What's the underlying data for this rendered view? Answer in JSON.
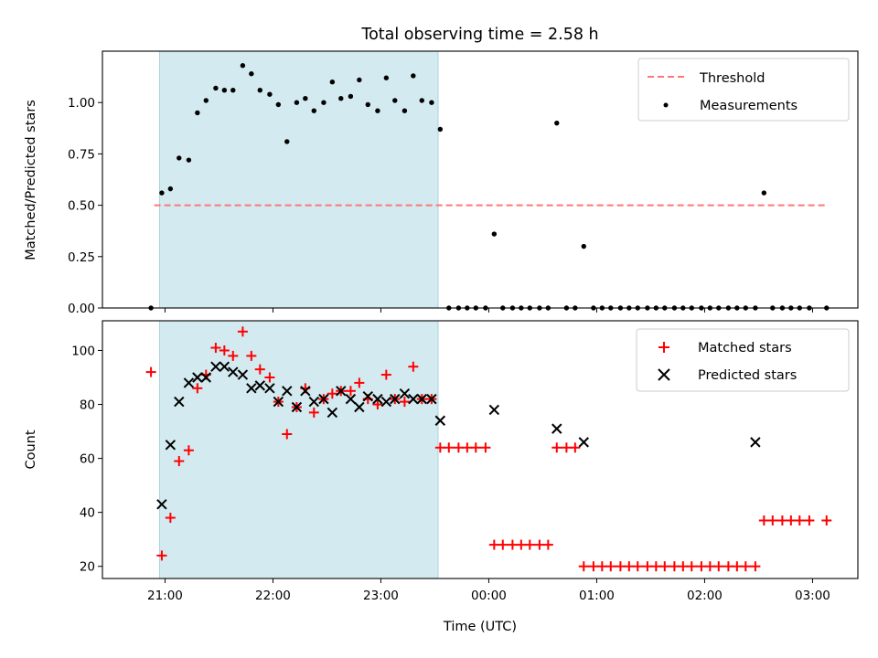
{
  "chart_data": {
    "title": "Total observing time = 2.58 h",
    "xlabel": "Time (UTC)",
    "x_tick_labels": [
      "21:00",
      "22:00",
      "23:00",
      "00:00",
      "01:00",
      "02:00",
      "03:00"
    ],
    "x_tick_hours": [
      21,
      22,
      23,
      24,
      25,
      26,
      27
    ],
    "x_range_hours": [
      20.42,
      27.42
    ],
    "observing_window_hours": [
      20.95,
      23.53
    ],
    "shade_color": "#d3eaf0",
    "panels": [
      {
        "type": "scatter",
        "ylabel": "Matched/Predicted stars",
        "ylim": [
          0,
          1.25
        ],
        "y_ticks": [
          0,
          0.25,
          0.5,
          0.75,
          1.0
        ],
        "y_tick_labels": [
          "0.00",
          "0.25",
          "0.50",
          "0.75",
          "1.00"
        ],
        "legend_position": "top-right",
        "threshold": {
          "name": "Threshold",
          "value": 0.5,
          "x_range": [
            20.9,
            27.13
          ],
          "color": "#ff7575"
        },
        "series": [
          {
            "name": "Measurements",
            "color": "#000000",
            "x": [
              20.87,
              20.97,
              21.05,
              21.13,
              21.22,
              21.3,
              21.38,
              21.47,
              21.55,
              21.63,
              21.72,
              21.8,
              21.88,
              21.97,
              22.05,
              22.13,
              22.22,
              22.3,
              22.38,
              22.47,
              22.55,
              22.63,
              22.72,
              22.8,
              22.88,
              22.97,
              23.05,
              23.13,
              23.22,
              23.3,
              23.38,
              23.47,
              23.55,
              23.63,
              23.72,
              23.8,
              23.88,
              23.97,
              24.05,
              24.13,
              24.22,
              24.3,
              24.38,
              24.47,
              24.55,
              24.63,
              24.72,
              24.8,
              24.88,
              24.97,
              25.05,
              25.13,
              25.22,
              25.3,
              25.38,
              25.47,
              25.55,
              25.63,
              25.72,
              25.8,
              25.88,
              25.97,
              26.05,
              26.13,
              26.22,
              26.3,
              26.38,
              26.47,
              26.55,
              26.63,
              26.72,
              26.8,
              26.88,
              26.97,
              27.13
            ],
            "y": [
              0.0,
              0.56,
              0.58,
              0.73,
              0.72,
              0.95,
              1.01,
              1.07,
              1.06,
              1.06,
              1.18,
              1.14,
              1.06,
              1.04,
              0.99,
              0.81,
              1.0,
              1.02,
              0.96,
              1.0,
              1.1,
              1.02,
              1.03,
              1.11,
              0.99,
              0.96,
              1.12,
              1.01,
              0.96,
              1.13,
              1.01,
              1.0,
              0.87,
              0.0,
              0.0,
              0.0,
              0.0,
              0.0,
              0.36,
              0.0,
              0.0,
              0.0,
              0.0,
              0.0,
              0.0,
              0.9,
              0.0,
              0.0,
              0.3,
              0.0,
              0.0,
              0.0,
              0.0,
              0.0,
              0.0,
              0.0,
              0.0,
              0.0,
              0.0,
              0.0,
              0.0,
              0.0,
              0.0,
              0.0,
              0.0,
              0.0,
              0.0,
              0.0,
              0.56,
              0.0,
              0.0,
              0.0,
              0.0,
              0.0,
              0.0
            ]
          }
        ]
      },
      {
        "type": "scatter",
        "ylabel": "Count",
        "ylim": [
          15.5,
          111
        ],
        "y_ticks": [
          20,
          40,
          60,
          80,
          100
        ],
        "y_tick_labels": [
          "20",
          "40",
          "60",
          "80",
          "100"
        ],
        "legend_position": "top-right",
        "series": [
          {
            "name": "Matched stars",
            "marker": "plus",
            "color": "#ff0000",
            "x": [
              20.87,
              20.97,
              21.05,
              21.13,
              21.22,
              21.3,
              21.38,
              21.47,
              21.55,
              21.63,
              21.72,
              21.8,
              21.88,
              21.97,
              22.05,
              22.13,
              22.22,
              22.3,
              22.38,
              22.47,
              22.55,
              22.63,
              22.72,
              22.8,
              22.88,
              22.97,
              23.05,
              23.13,
              23.22,
              23.3,
              23.38,
              23.47,
              23.55,
              23.63,
              23.72,
              23.8,
              23.88,
              23.97,
              24.05,
              24.13,
              24.22,
              24.3,
              24.38,
              24.47,
              24.55,
              24.63,
              24.72,
              24.8,
              24.88,
              24.97,
              25.05,
              25.13,
              25.22,
              25.3,
              25.38,
              25.47,
              25.55,
              25.63,
              25.72,
              25.8,
              25.88,
              25.97,
              26.05,
              26.13,
              26.22,
              26.3,
              26.38,
              26.47,
              26.55,
              26.63,
              26.72,
              26.8,
              26.88,
              26.97,
              27.13
            ],
            "y": [
              92,
              24,
              38,
              59,
              63,
              86,
              91,
              101,
              100,
              98,
              107,
              98,
              93,
              90,
              81,
              69,
              79,
              86,
              77,
              82,
              84,
              85,
              85,
              88,
              82,
              80,
              91,
              82,
              81,
              94,
              82,
              82,
              64,
              64,
              64,
              64,
              64,
              64,
              28,
              28,
              28,
              28,
              28,
              28,
              28,
              64,
              64,
              64,
              20,
              20,
              20,
              20,
              20,
              20,
              20,
              20,
              20,
              20,
              20,
              20,
              20,
              20,
              20,
              20,
              20,
              20,
              20,
              20,
              37,
              37,
              37,
              37,
              37,
              37,
              37
            ]
          },
          {
            "name": "Predicted stars",
            "marker": "x",
            "color": "#000000",
            "x": [
              20.97,
              21.05,
              21.13,
              21.22,
              21.3,
              21.38,
              21.47,
              21.55,
              21.63,
              21.72,
              21.8,
              21.88,
              21.97,
              22.05,
              22.13,
              22.22,
              22.3,
              22.38,
              22.47,
              22.55,
              22.63,
              22.72,
              22.8,
              22.88,
              22.97,
              23.05,
              23.13,
              23.22,
              23.3,
              23.38,
              23.47,
              23.55,
              24.05,
              24.63,
              24.88,
              26.47
            ],
            "y": [
              43,
              65,
              81,
              88,
              90,
              90,
              94,
              94,
              92,
              91,
              86,
              87,
              86,
              81,
              85,
              79,
              85,
              81,
              82,
              77,
              85,
              82,
              79,
              83,
              82,
              81,
              82,
              84,
              82,
              82,
              82,
              74,
              78,
              71,
              66,
              66
            ]
          }
        ]
      }
    ]
  }
}
